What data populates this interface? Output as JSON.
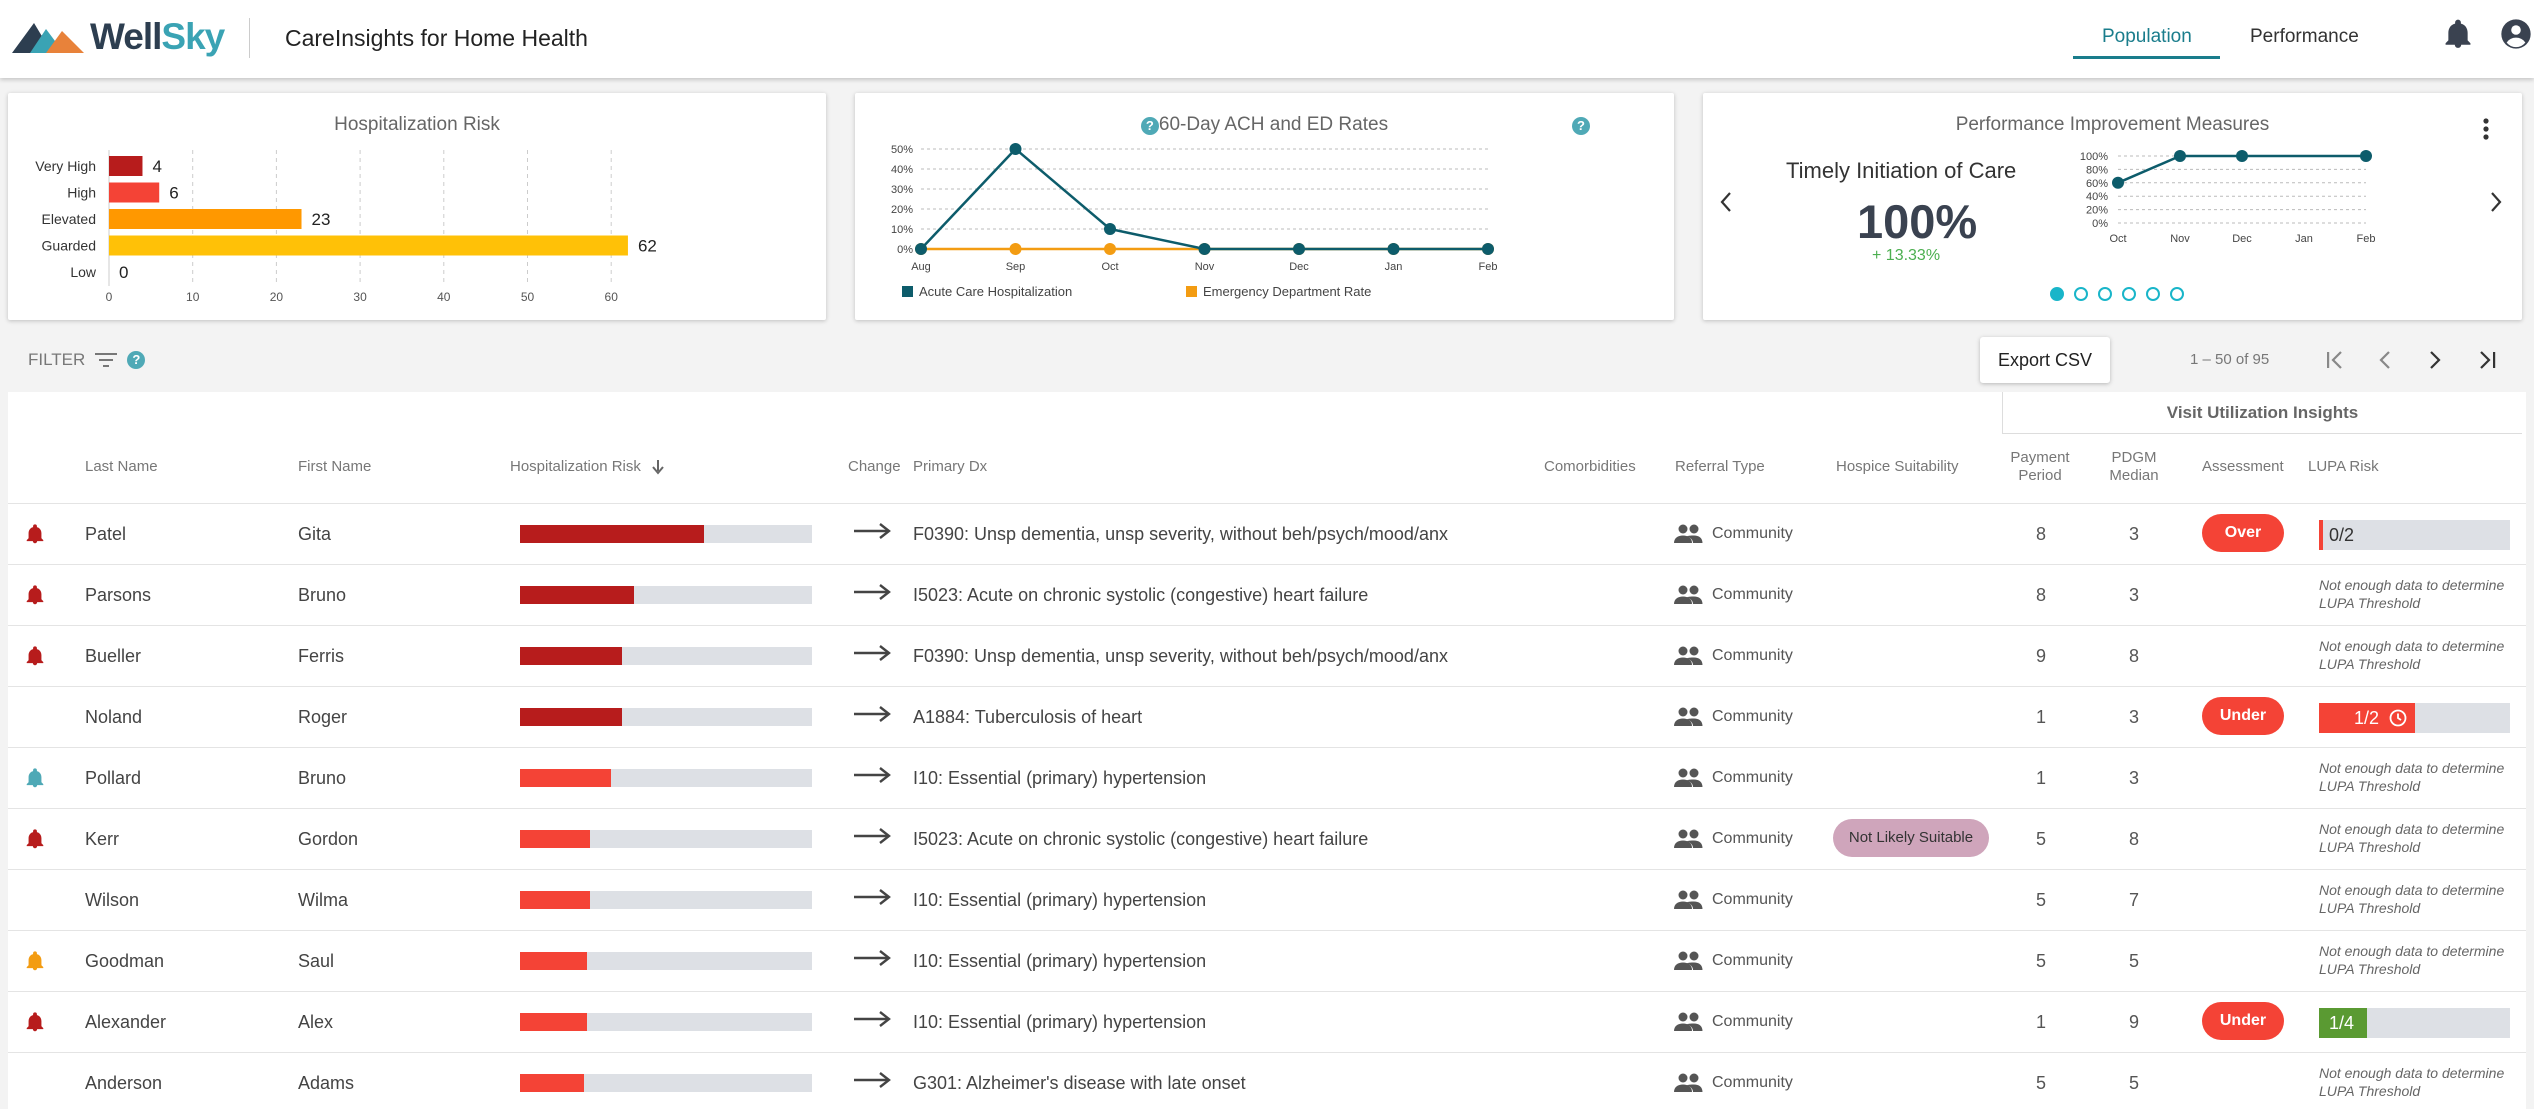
{
  "header": {
    "brand": "WellSky",
    "brand_a": "Well",
    "brand_b": "Sky",
    "app_title": "CareInsights for Home Health",
    "tabs": [
      "Population",
      "Performance"
    ]
  },
  "risk_card": {
    "title": "Hospitalization Risk",
    "chart_data": {
      "type": "bar",
      "orientation": "horizontal",
      "categories": [
        "Very High",
        "High",
        "Elevated",
        "Guarded",
        "Low"
      ],
      "values": [
        4,
        6,
        23,
        62,
        0
      ],
      "colors": [
        "#b71c1c",
        "#f44336",
        "#ff9800",
        "#ffc107",
        "#ffc107"
      ],
      "xticks": [
        0,
        10,
        20,
        30,
        40,
        50,
        60
      ],
      "xlim": [
        0,
        62
      ]
    }
  },
  "rates_card": {
    "title": "60-Day ACH and ED Rates",
    "chart_data": {
      "type": "line",
      "categories": [
        "Aug",
        "Sep",
        "Oct",
        "Nov",
        "Dec",
        "Jan",
        "Feb"
      ],
      "yticks": [
        "50%",
        "40%",
        "30%",
        "20%",
        "10%",
        "0%"
      ],
      "ylim": [
        0,
        50
      ],
      "series": [
        {
          "name": "Acute Care Hospitalization",
          "color": "#0d5c6b",
          "values": [
            0,
            50,
            10,
            0,
            0,
            0,
            0
          ]
        },
        {
          "name": "Emergency Department Rate",
          "color": "#f39c12",
          "values": [
            0,
            0,
            0,
            0,
            0,
            0,
            0
          ]
        }
      ]
    }
  },
  "perf_card": {
    "title": "Performance Improvement Measures",
    "measure": "Timely Initiation of Care",
    "value": "100%",
    "delta": "+ 13.33%",
    "chart_data": {
      "type": "line",
      "categories": [
        "Oct",
        "Nov",
        "Dec",
        "Jan",
        "Feb"
      ],
      "yticks": [
        "100%",
        "80%",
        "60%",
        "40%",
        "20%",
        "0%"
      ],
      "ylim": [
        0,
        100
      ],
      "series": [
        {
          "name": "Timely Initiation of Care",
          "color": "#0d5c6b",
          "values": [
            60,
            100,
            100,
            null,
            100
          ]
        }
      ]
    }
  },
  "toolbar": {
    "filter_label": "FILTER",
    "export_label": "Export CSV",
    "page_info": "1 – 50 of 95"
  },
  "table": {
    "group_header": "Visit Utilization Insights",
    "headers": {
      "last": "Last Name",
      "first": "First Name",
      "risk": "Hospitalization Risk",
      "change": "Change",
      "dx": "Primary Dx",
      "comorb": "Comorbidities",
      "referral": "Referral Type",
      "hospice": "Hospice Suitability",
      "period_a": "Payment",
      "period_b": "Period",
      "pdgm_a": "PDGM",
      "pdgm_b": "Median",
      "assessment": "Assessment",
      "lupa": "LUPA Risk"
    },
    "lupa_msg": "Not enough data to determine LUPA Threshold",
    "rows": [
      {
        "last": "Patel",
        "first": "Gita",
        "bell": "#b71c1c",
        "risk": 0.63,
        "risk_color": "#b71c1c",
        "dx": "F0390: Unsp dementia, unsp severity, without beh/psych/mood/anx",
        "referral": "Community",
        "hospice": "",
        "period": "8",
        "pdgm": "3",
        "assessment": "Over",
        "lupa_text": "0/2",
        "lupa_fill": 0.03,
        "lupa_color": "#f44336",
        "lupa_clock": false
      },
      {
        "last": "Parsons",
        "first": "Bruno",
        "bell": "#b71c1c",
        "risk": 0.39,
        "risk_color": "#b71c1c",
        "dx": "I5023: Acute on chronic systolic (congestive) heart failure",
        "referral": "Community",
        "hospice": "",
        "period": "8",
        "pdgm": "3",
        "assessment": "",
        "lupa_text": "",
        "lupa_fill": 0,
        "lupa_color": "",
        "lupa_clock": false
      },
      {
        "last": "Bueller",
        "first": "Ferris",
        "bell": "#b71c1c",
        "risk": 0.35,
        "risk_color": "#b71c1c",
        "dx": "F0390: Unsp dementia, unsp severity, without beh/psych/mood/anx",
        "referral": "Community",
        "hospice": "",
        "period": "9",
        "pdgm": "8",
        "assessment": "",
        "lupa_text": "",
        "lupa_fill": 0,
        "lupa_color": "",
        "lupa_clock": false
      },
      {
        "last": "Noland",
        "first": "Roger",
        "bell": "",
        "risk": 0.35,
        "risk_color": "#b71c1c",
        "dx": "A1884: Tuberculosis of heart",
        "referral": "Community",
        "hospice": "",
        "period": "1",
        "pdgm": "3",
        "assessment": "Under",
        "lupa_text": "1/2",
        "lupa_fill": 0.5,
        "lupa_color": "#f44336",
        "lupa_clock": true
      },
      {
        "last": "Pollard",
        "first": "Bruno",
        "bell": "#4fa9b6",
        "risk": 0.31,
        "risk_color": "#f44336",
        "dx": "I10: Essential (primary) hypertension",
        "referral": "Community",
        "hospice": "",
        "period": "1",
        "pdgm": "3",
        "assessment": "",
        "lupa_text": "",
        "lupa_fill": 0,
        "lupa_color": "",
        "lupa_clock": false
      },
      {
        "last": "Kerr",
        "first": "Gordon",
        "bell": "#b71c1c",
        "risk": 0.24,
        "risk_color": "#f44336",
        "dx": "I5023: Acute on chronic systolic (congestive) heart failure",
        "referral": "Community",
        "hospice": "Not Likely Suitable",
        "period": "5",
        "pdgm": "8",
        "assessment": "",
        "lupa_text": "",
        "lupa_fill": 0,
        "lupa_color": "",
        "lupa_clock": false
      },
      {
        "last": "Wilson",
        "first": "Wilma",
        "bell": "",
        "risk": 0.24,
        "risk_color": "#f44336",
        "dx": "I10: Essential (primary) hypertension",
        "referral": "Community",
        "hospice": "",
        "period": "5",
        "pdgm": "7",
        "assessment": "",
        "lupa_text": "",
        "lupa_fill": 0,
        "lupa_color": "",
        "lupa_clock": false
      },
      {
        "last": "Goodman",
        "first": "Saul",
        "bell": "#f39c12",
        "risk": 0.23,
        "risk_color": "#f44336",
        "dx": "I10: Essential (primary) hypertension",
        "referral": "Community",
        "hospice": "",
        "period": "5",
        "pdgm": "5",
        "assessment": "",
        "lupa_text": "",
        "lupa_fill": 0,
        "lupa_color": "",
        "lupa_clock": false
      },
      {
        "last": "Alexander",
        "first": "Alex",
        "bell": "#b71c1c",
        "risk": 0.23,
        "risk_color": "#f44336",
        "dx": "I10: Essential (primary) hypertension",
        "referral": "Community",
        "hospice": "",
        "period": "1",
        "pdgm": "9",
        "assessment": "Under",
        "lupa_text": "1/4",
        "lupa_fill": 0.25,
        "lupa_color": "#5a9a32",
        "lupa_clock": false
      },
      {
        "last": "Anderson",
        "first": "Adams",
        "bell": "",
        "risk": 0.22,
        "risk_color": "#f44336",
        "dx": "G301: Alzheimer's disease with late onset",
        "referral": "Community",
        "hospice": "",
        "period": "5",
        "pdgm": "5",
        "assessment": "",
        "lupa_text": "",
        "lupa_fill": 0,
        "lupa_color": "",
        "lupa_clock": false
      }
    ]
  }
}
